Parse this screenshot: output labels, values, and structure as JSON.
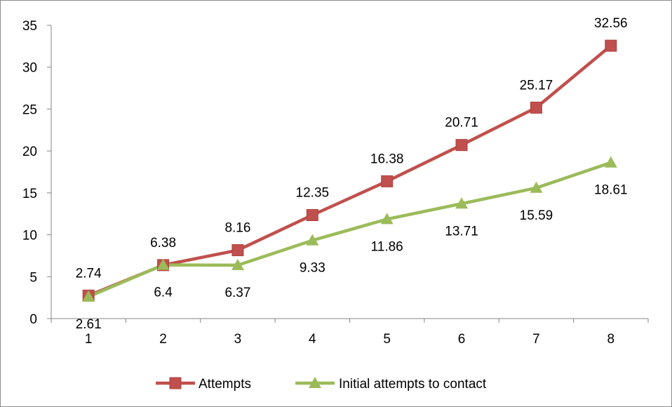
{
  "chart_data": {
    "type": "line",
    "title": "",
    "xlabel": "",
    "ylabel": "",
    "categories": [
      "1",
      "2",
      "3",
      "4",
      "5",
      "6",
      "7",
      "8"
    ],
    "ylim": [
      0,
      35
    ],
    "yticks": [
      "0",
      "5",
      "10",
      "15",
      "20",
      "25",
      "30",
      "35"
    ],
    "grid": false,
    "legend_position": "bottom",
    "series": [
      {
        "name": "Attempts",
        "values": [
          2.74,
          6.38,
          8.16,
          12.35,
          16.38,
          20.71,
          25.17,
          32.56
        ],
        "labels": [
          "2.74",
          "6.38",
          "8.16",
          "12.35",
          "16.38",
          "20.71",
          "25.17",
          "32.56"
        ],
        "color": "#c0504d",
        "marker": "square",
        "label_position": "above"
      },
      {
        "name": "Initial attempts to contact",
        "values": [
          2.61,
          6.4,
          6.37,
          9.33,
          11.86,
          13.71,
          15.59,
          18.61
        ],
        "labels": [
          "2.61",
          "6.4",
          "6.37",
          "9.33",
          "11.86",
          "13.71",
          "15.59",
          "18.61"
        ],
        "color": "#9bbb59",
        "marker": "triangle",
        "label_position": "below"
      }
    ]
  }
}
